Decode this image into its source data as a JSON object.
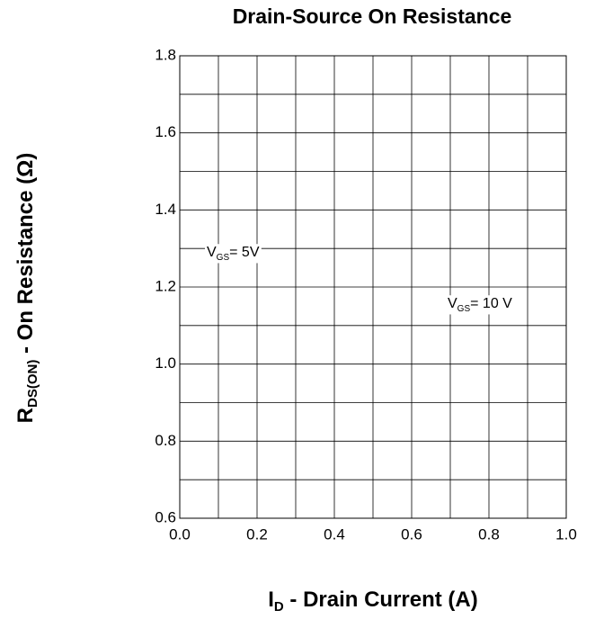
{
  "chart_data": {
    "type": "line",
    "title": "Drain-Source On Resistance",
    "x_label": {
      "main": "I",
      "sub": "D",
      "rest": " - Drain Current (A)"
    },
    "y_label": {
      "main": "R",
      "sub": "DS(ON)",
      "rest": " - On Resistance (Ω)"
    },
    "annotations": [
      {
        "main": "V",
        "sub": "GS",
        "rest": "= 5V"
      },
      {
        "main": "V",
        "sub": "GS",
        "rest": "= 10 V"
      }
    ],
    "series": [],
    "xlim": [
      0,
      1
    ],
    "ylim": [
      0.6,
      1.8
    ],
    "xticks": [
      {
        "value": 0,
        "label": "0.0"
      },
      0.2,
      0.4,
      0.6,
      0.8,
      {
        "value": 1,
        "label": "1.0"
      }
    ],
    "yticks": [
      0.6,
      0.8,
      {
        "value": 1,
        "label": "1.0"
      },
      1.2,
      1.4,
      1.6,
      1.8
    ],
    "x_minor_ticks": [
      0.1,
      0.3,
      0.5,
      0.7,
      0.9
    ],
    "y_minor_ticks": [
      0.7,
      0.9,
      1.1,
      1.3,
      1.5,
      1.7
    ],
    "grid": true
  }
}
